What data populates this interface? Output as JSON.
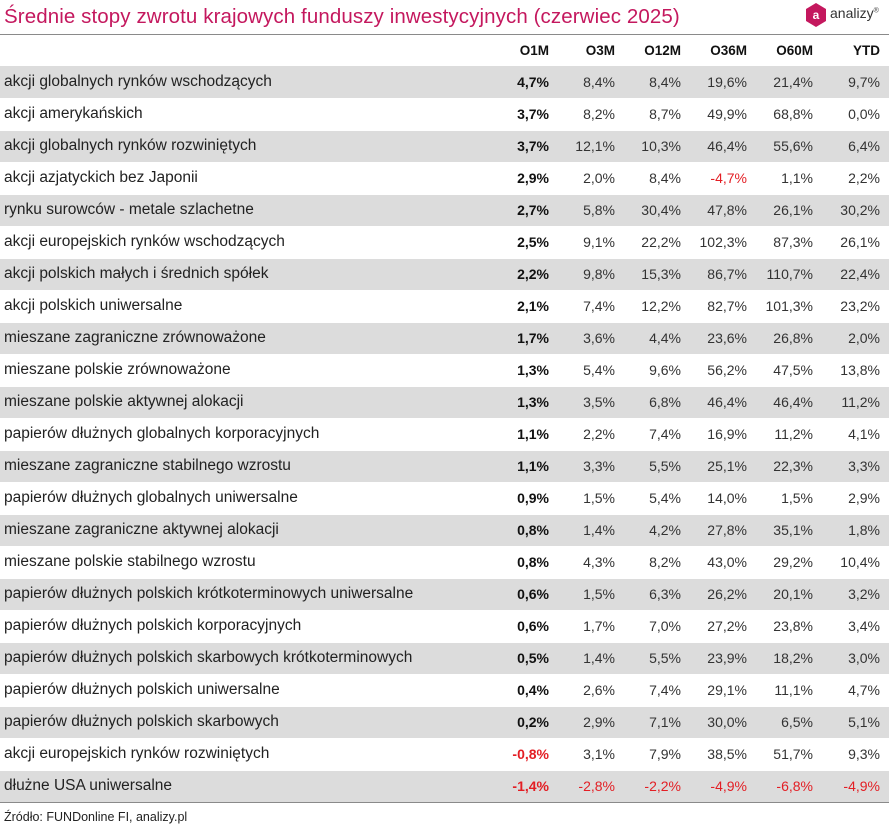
{
  "title": "Średnie stopy zwrotu krajowych funduszy inwestycyjnych (czerwiec 2025)",
  "logo": {
    "text": "analizy",
    "mark": "®",
    "letter": "a"
  },
  "colors": {
    "accent": "#c4185e",
    "negative": "#e31e24",
    "row_shade": "#dcdcdc"
  },
  "table": {
    "columns": [
      "O1M",
      "O3M",
      "O12M",
      "O36M",
      "O60M",
      "YTD"
    ],
    "rows": [
      {
        "name": "akcji globalnych rynków wschodzących",
        "values": [
          "4,7%",
          "8,4%",
          "8,4%",
          "19,6%",
          "21,4%",
          "9,7%"
        ]
      },
      {
        "name": "akcji amerykańskich",
        "values": [
          "3,7%",
          "8,2%",
          "8,7%",
          "49,9%",
          "68,8%",
          "0,0%"
        ]
      },
      {
        "name": "akcji globalnych rynków rozwiniętych",
        "values": [
          "3,7%",
          "12,1%",
          "10,3%",
          "46,4%",
          "55,6%",
          "6,4%"
        ]
      },
      {
        "name": "akcji azjatyckich bez Japonii",
        "values": [
          "2,9%",
          "2,0%",
          "8,4%",
          "-4,7%",
          "1,1%",
          "2,2%"
        ]
      },
      {
        "name": "rynku surowców - metale szlachetne",
        "values": [
          "2,7%",
          "5,8%",
          "30,4%",
          "47,8%",
          "26,1%",
          "30,2%"
        ]
      },
      {
        "name": "akcji europejskich rynków wschodzących",
        "values": [
          "2,5%",
          "9,1%",
          "22,2%",
          "102,3%",
          "87,3%",
          "26,1%"
        ]
      },
      {
        "name": "akcji polskich małych i średnich spółek",
        "values": [
          "2,2%",
          "9,8%",
          "15,3%",
          "86,7%",
          "110,7%",
          "22,4%"
        ]
      },
      {
        "name": "akcji polskich uniwersalne",
        "values": [
          "2,1%",
          "7,4%",
          "12,2%",
          "82,7%",
          "101,3%",
          "23,2%"
        ]
      },
      {
        "name": "mieszane zagraniczne zrównoważone",
        "values": [
          "1,7%",
          "3,6%",
          "4,4%",
          "23,6%",
          "26,8%",
          "2,0%"
        ]
      },
      {
        "name": "mieszane polskie zrównoważone",
        "values": [
          "1,3%",
          "5,4%",
          "9,6%",
          "56,2%",
          "47,5%",
          "13,8%"
        ]
      },
      {
        "name": "mieszane polskie aktywnej alokacji",
        "values": [
          "1,3%",
          "3,5%",
          "6,8%",
          "46,4%",
          "46,4%",
          "11,2%"
        ]
      },
      {
        "name": "papierów dłużnych globalnych korporacyjnych",
        "values": [
          "1,1%",
          "2,2%",
          "7,4%",
          "16,9%",
          "11,2%",
          "4,1%"
        ]
      },
      {
        "name": "mieszane zagraniczne stabilnego wzrostu",
        "values": [
          "1,1%",
          "3,3%",
          "5,5%",
          "25,1%",
          "22,3%",
          "3,3%"
        ]
      },
      {
        "name": "papierów dłużnych globalnych uniwersalne",
        "values": [
          "0,9%",
          "1,5%",
          "5,4%",
          "14,0%",
          "1,5%",
          "2,9%"
        ]
      },
      {
        "name": "mieszane zagraniczne aktywnej alokacji",
        "values": [
          "0,8%",
          "1,4%",
          "4,2%",
          "27,8%",
          "35,1%",
          "1,8%"
        ]
      },
      {
        "name": "mieszane polskie stabilnego wzrostu",
        "values": [
          "0,8%",
          "4,3%",
          "8,2%",
          "43,0%",
          "29,2%",
          "10,4%"
        ]
      },
      {
        "name": "papierów dłużnych polskich krótkoterminowych uniwersalne",
        "values": [
          "0,6%",
          "1,5%",
          "6,3%",
          "26,2%",
          "20,1%",
          "3,2%"
        ]
      },
      {
        "name": "papierów dłużnych polskich korporacyjnych",
        "values": [
          "0,6%",
          "1,7%",
          "7,0%",
          "27,2%",
          "23,8%",
          "3,4%"
        ]
      },
      {
        "name": "papierów dłużnych polskich skarbowych krótkoterminowych",
        "values": [
          "0,5%",
          "1,4%",
          "5,5%",
          "23,9%",
          "18,2%",
          "3,0%"
        ]
      },
      {
        "name": "papierów dłużnych polskich uniwersalne",
        "values": [
          "0,4%",
          "2,6%",
          "7,4%",
          "29,1%",
          "11,1%",
          "4,7%"
        ]
      },
      {
        "name": "papierów dłużnych polskich skarbowych",
        "values": [
          "0,2%",
          "2,9%",
          "7,1%",
          "30,0%",
          "6,5%",
          "5,1%"
        ]
      },
      {
        "name": "akcji europejskich rynków rozwiniętych",
        "values": [
          "-0,8%",
          "3,1%",
          "7,9%",
          "38,5%",
          "51,7%",
          "9,3%"
        ]
      },
      {
        "name": "dłużne USA uniwersalne",
        "values": [
          "-1,4%",
          "-2,8%",
          "-2,2%",
          "-4,9%",
          "-6,8%",
          "-4,9%"
        ]
      }
    ]
  },
  "source": "Źródło: FUNDonline FI, analizy.pl"
}
